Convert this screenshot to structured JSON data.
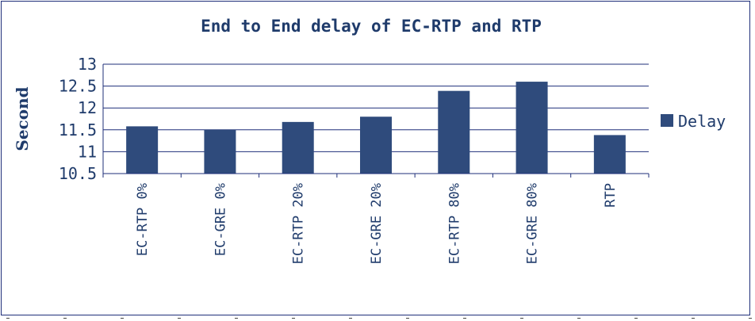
{
  "chart_data": {
    "type": "bar",
    "title": "End to End delay of EC-RTP and RTP",
    "xlabel": "",
    "ylabel": "Second",
    "categories": [
      "EC-RTP 0%",
      "EC-GRE 0%",
      "EC-RTP 20%",
      "EC-GRE 20%",
      "EC-RTP 80%",
      "EC-GRE 80%",
      "RTP"
    ],
    "series": [
      {
        "name": "Delay",
        "values": [
          11.58,
          11.5,
          11.68,
          11.8,
          12.39,
          12.6,
          11.38
        ]
      }
    ],
    "yticks": [
      "10.5",
      "11",
      "11.5",
      "12",
      "12.5",
      "13"
    ],
    "ylim": [
      10.5,
      13
    ],
    "grid": true,
    "legend": "right",
    "bar_color": "#2f4b7c",
    "text_color": "#1f3b6b",
    "border_color": "#1f2f7a"
  }
}
